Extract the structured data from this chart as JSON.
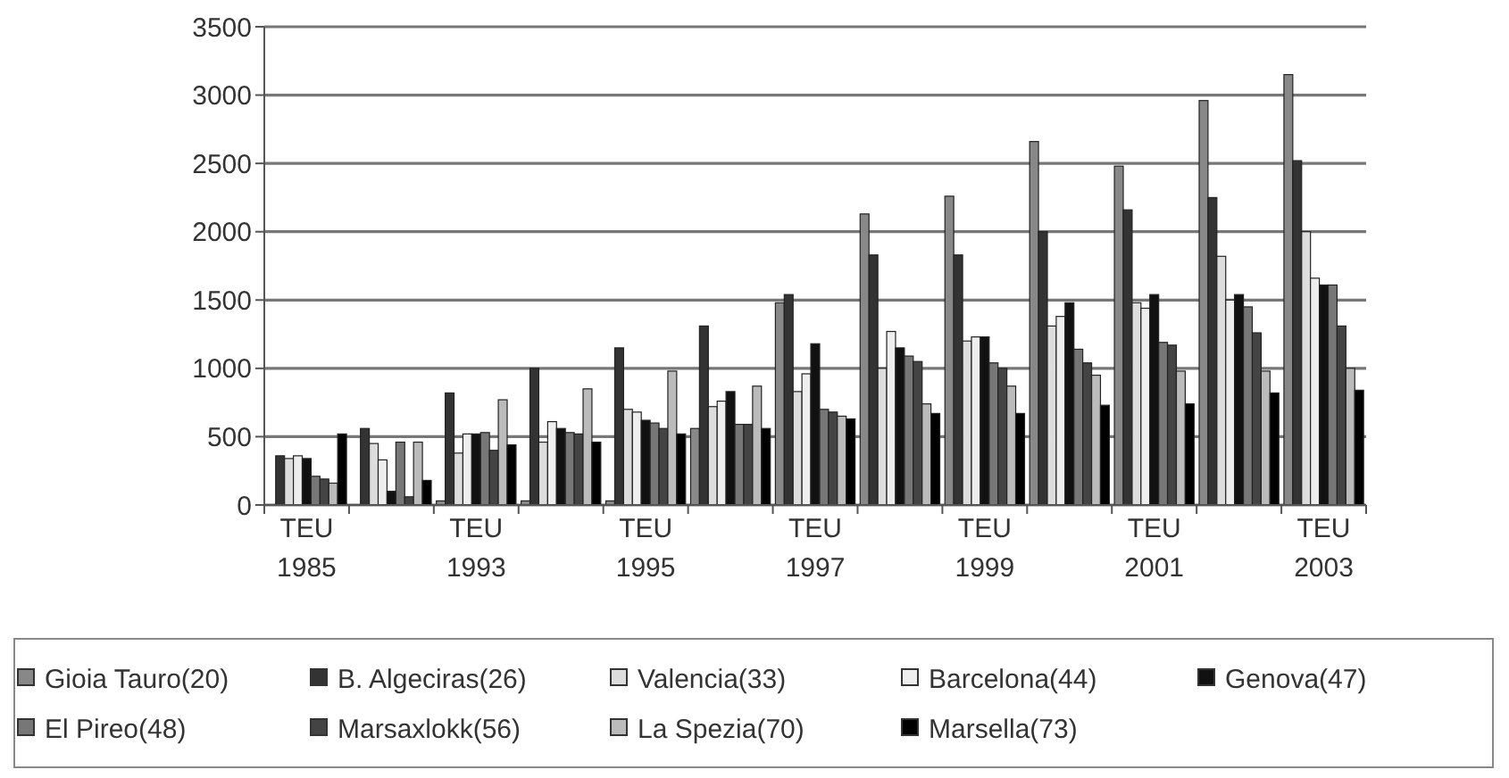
{
  "chart_data": {
    "type": "bar",
    "categories": [
      "TEU\n1985",
      null,
      "TEU\n1993",
      null,
      "TEU\n1995",
      null,
      "TEU\n1997",
      null,
      "TEU\n1999",
      null,
      "TEU\n2001",
      null,
      "TEU\n2003"
    ],
    "series": [
      {
        "name": "Gioia Tauro(20)",
        "color": "#888888",
        "values": [
          0,
          0,
          30,
          30,
          30,
          560,
          1480,
          2130,
          2260,
          2660,
          2480,
          2960,
          3150
        ]
      },
      {
        "name": "B. Algeciras(26)",
        "color": "#333333",
        "values": [
          360,
          560,
          820,
          1000,
          1150,
          1310,
          1540,
          1830,
          1830,
          2000,
          2160,
          2250,
          2520
        ]
      },
      {
        "name": "Valencia(33)",
        "color": "#dddddd",
        "values": [
          340,
          450,
          380,
          460,
          700,
          720,
          830,
          1000,
          1200,
          1310,
          1480,
          1820,
          2000
        ]
      },
      {
        "name": "Barcelona(44)",
        "color": "#eeeeee",
        "values": [
          360,
          330,
          520,
          610,
          680,
          760,
          960,
          1270,
          1230,
          1380,
          1440,
          1500,
          1660
        ]
      },
      {
        "name": "Genova(47)",
        "color": "#111111",
        "values": [
          340,
          100,
          520,
          560,
          620,
          830,
          1180,
          1150,
          1230,
          1480,
          1540,
          1540,
          1610
        ]
      },
      {
        "name": "El Pireo(48)",
        "color": "#777777",
        "values": [
          210,
          460,
          530,
          530,
          600,
          590,
          700,
          1090,
          1040,
          1140,
          1190,
          1450,
          1610
        ]
      },
      {
        "name": "Marsaxlokk(56)",
        "color": "#444444",
        "values": [
          190,
          60,
          400,
          520,
          560,
          590,
          680,
          1050,
          1000,
          1040,
          1170,
          1260,
          1310
        ]
      },
      {
        "name": "La Spezia(70)",
        "color": "#bbbbbb",
        "values": [
          160,
          460,
          770,
          850,
          980,
          870,
          650,
          740,
          870,
          950,
          980,
          980,
          1000
        ]
      },
      {
        "name": "Marsella(73)",
        "color": "#000000",
        "values": [
          520,
          180,
          440,
          460,
          520,
          560,
          630,
          670,
          670,
          730,
          740,
          820,
          840
        ]
      }
    ],
    "ylim": [
      0,
      3500
    ],
    "yticks": [
      0,
      500,
      1000,
      1500,
      2000,
      2500,
      3000,
      3500
    ],
    "grid": "y",
    "legend": "bottom"
  }
}
